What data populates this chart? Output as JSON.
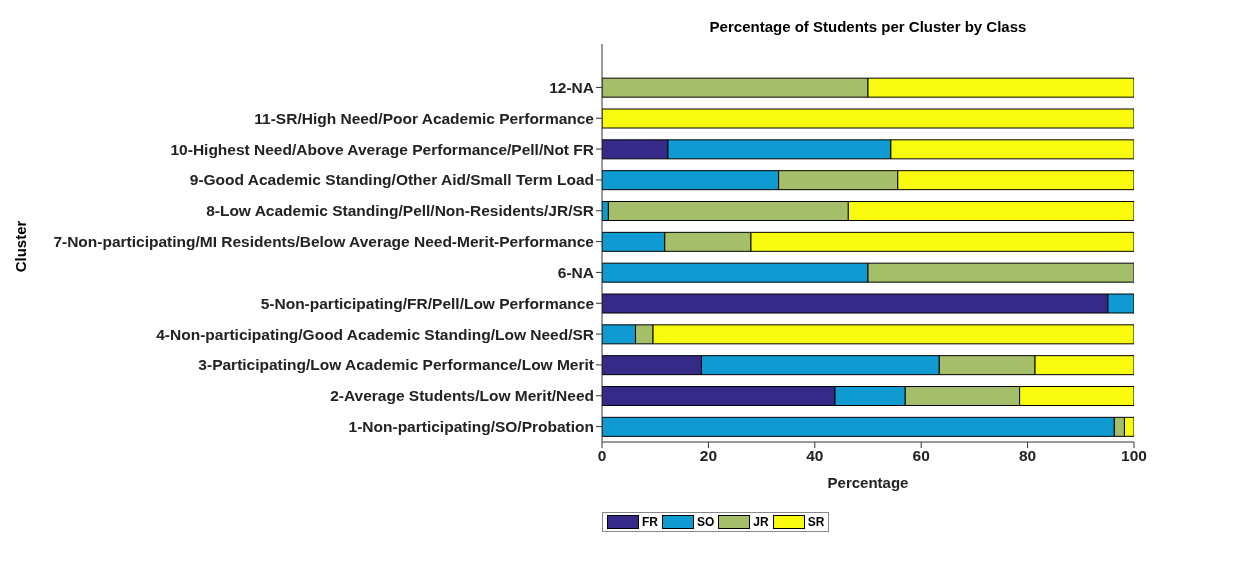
{
  "chart_data": {
    "type": "bar",
    "orientation": "horizontal",
    "stacked": true,
    "title": "Percentage of Students per Cluster by Class",
    "xlabel": "Percentage",
    "ylabel": "Cluster",
    "categories": [
      "12-NA",
      "11-SR/High Need/Poor Academic Performance",
      "10-Highest Need/Above Average Performance/Pell/Not FR",
      "9-Good Academic Standing/Other Aid/Small Term Load",
      "8-Low Academic Standing/Pell/Non-Residents/JR/SR",
      "7-Non-participating/MI Residents/Below Average Need-Merit-Performance",
      "6-NA",
      "5-Non-participating/FR/Pell/Low Performance",
      "4-Non-participating/Good Academic Standing/Low Need/SR",
      "3-Participating/Low Academic Performance/Low Merit",
      "2-Average Students/Low Merit/Need",
      "1-Non-participating/SO/Probation"
    ],
    "series": [
      {
        "name": "FR",
        "color": "#352a87",
        "values": [
          0,
          0,
          12.4,
          0,
          0,
          0,
          0,
          95.1,
          0,
          18.7,
          43.8,
          0
        ]
      },
      {
        "name": "SO",
        "color": "#0f9bd2",
        "values": [
          0,
          0,
          41.9,
          33.2,
          1.2,
          11.8,
          50,
          4.9,
          6.3,
          44.7,
          13.2,
          96.3
        ]
      },
      {
        "name": "JR",
        "color": "#a5be6a",
        "values": [
          50,
          0,
          0,
          22.4,
          45.1,
          16.2,
          50,
          0,
          3.3,
          18,
          21.5,
          1.9
        ]
      },
      {
        "name": "SR",
        "color": "#f9fb0e",
        "values": [
          50,
          100,
          45.7,
          44.4,
          53.7,
          72,
          0,
          0,
          90.4,
          18.6,
          21.5,
          1.8
        ]
      }
    ],
    "xlim": [
      0,
      100
    ],
    "xticks": [
      0,
      20,
      40,
      60,
      80,
      100
    ],
    "grid": false,
    "legend": "bottom"
  }
}
